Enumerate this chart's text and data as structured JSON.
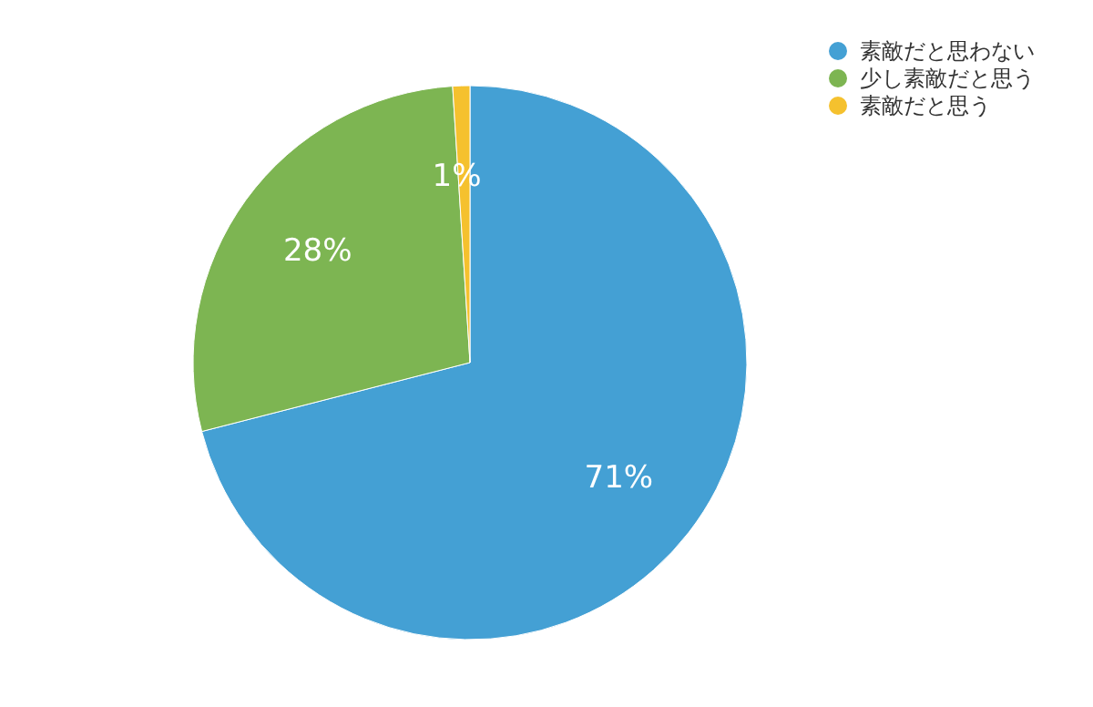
{
  "chart_data": {
    "type": "pie",
    "categories": [
      "素敵だと思わない",
      "少し素敵だと思う",
      "素敵だと思う"
    ],
    "values": [
      71,
      28,
      1
    ],
    "colors": [
      "#44a0d4",
      "#7db552",
      "#f5c12e"
    ],
    "value_labels": [
      "71%",
      "28%",
      "1%"
    ],
    "legend": "top right"
  }
}
